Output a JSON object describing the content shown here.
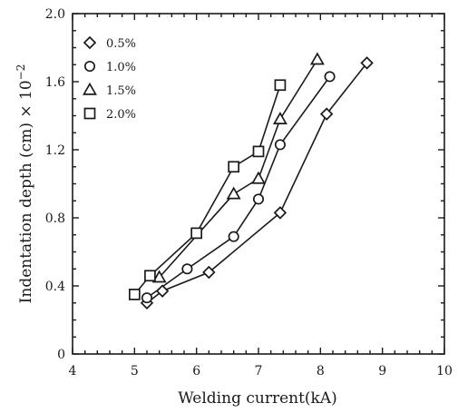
{
  "chart_data": {
    "type": "line",
    "title": "",
    "xlabel": "Welding current(kA)",
    "ylabel": "Indentation depth (cm) × 10",
    "ylabel_exponent": "−2",
    "xlim": [
      4,
      10
    ],
    "ylim": [
      0,
      2.0
    ],
    "x_major_ticks": [
      4,
      5,
      6,
      7,
      8,
      9,
      10
    ],
    "y_major_ticks": [
      0,
      0.4,
      0.8,
      1.2,
      1.6,
      2.0
    ],
    "x_tick_labels": [
      "4",
      "5",
      "6",
      "7",
      "8",
      "9",
      "10"
    ],
    "y_tick_labels": [
      "0",
      "0.4",
      "0.8",
      "1.2",
      "1.6",
      "2.0"
    ],
    "grid": false,
    "legend_position": "top-left",
    "series": [
      {
        "name": "0.5%",
        "marker": "diamond",
        "points": [
          [
            5.2,
            0.3
          ],
          [
            5.45,
            0.37
          ],
          [
            6.2,
            0.48
          ],
          [
            7.35,
            0.83
          ],
          [
            8.1,
            1.41
          ],
          [
            8.75,
            1.71
          ]
        ]
      },
      {
        "name": "1.0%",
        "marker": "circle",
        "points": [
          [
            5.2,
            0.33
          ],
          [
            5.85,
            0.5
          ],
          [
            6.6,
            0.69
          ],
          [
            7.0,
            0.91
          ],
          [
            7.35,
            1.23
          ],
          [
            8.15,
            1.63
          ]
        ]
      },
      {
        "name": "1.5%",
        "marker": "triangle",
        "points": [
          [
            5.4,
            0.45
          ],
          [
            6.6,
            0.94
          ],
          [
            7.0,
            1.03
          ],
          [
            7.35,
            1.38
          ],
          [
            7.95,
            1.73
          ]
        ]
      },
      {
        "name": "2.0%",
        "marker": "square",
        "points": [
          [
            5.0,
            0.35
          ],
          [
            5.25,
            0.46
          ],
          [
            6.0,
            0.71
          ],
          [
            6.6,
            1.1
          ],
          [
            7.0,
            1.19
          ],
          [
            7.35,
            1.58
          ]
        ]
      }
    ]
  }
}
